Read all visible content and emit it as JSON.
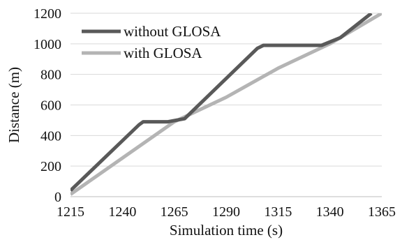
{
  "chart_data": {
    "type": "line",
    "xlabel": "Simulation  time (s)",
    "ylabel": "Distance (m)",
    "xlim": [
      1215,
      1365
    ],
    "ylim": [
      0,
      1200
    ],
    "x_ticks": [
      1215,
      1240,
      1265,
      1290,
      1315,
      1340,
      1365
    ],
    "y_ticks": [
      0,
      200,
      400,
      600,
      800,
      1000,
      1200
    ],
    "grid": "horizontal",
    "legend": "top-left",
    "series": [
      {
        "name": "without GLOSA",
        "color": "#595959",
        "points": [
          [
            1215,
            40
          ],
          [
            1248,
            470
          ],
          [
            1250,
            490
          ],
          [
            1262,
            490
          ],
          [
            1270,
            510
          ],
          [
            1305,
            970
          ],
          [
            1308,
            990
          ],
          [
            1336,
            990
          ],
          [
            1345,
            1040
          ],
          [
            1360,
            1200
          ]
        ]
      },
      {
        "name": "with GLOSA",
        "color": "#b4b4b4",
        "points": [
          [
            1215,
            15
          ],
          [
            1265,
            490
          ],
          [
            1290,
            650
          ],
          [
            1315,
            840
          ],
          [
            1340,
            1000
          ],
          [
            1365,
            1200
          ]
        ]
      }
    ]
  }
}
